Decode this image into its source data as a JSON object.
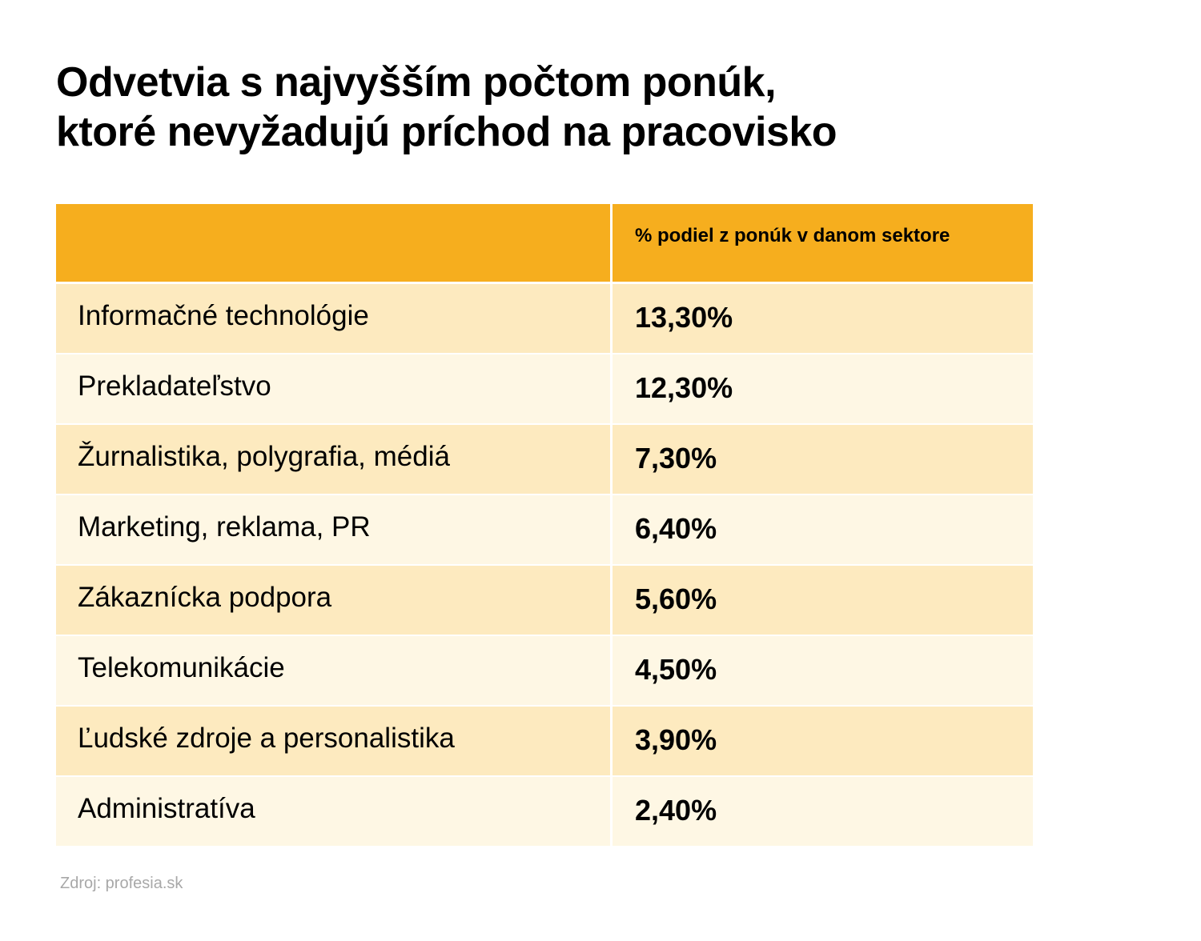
{
  "title_lines": [
    "Odvetvia s najvyšším počtom ponúk,",
    "ktoré nevyžadujú príchod na pracovisko"
  ],
  "colors": {
    "header": "#f6ae1e",
    "row_odd": "#fdeabf",
    "row_even": "#fef7e4",
    "source": "#a8a8a8"
  },
  "chart_data": {
    "type": "table",
    "title": "Odvetvia s najvyšším počtom ponúk, ktoré nevyžadujú príchod na pracovisko",
    "columns": [
      "",
      "% podiel z ponúk v danom sektore"
    ],
    "rows": [
      {
        "label": "Informačné technológie",
        "value": "13,30%",
        "numeric": 13.3
      },
      {
        "label": "Prekladateľstvo",
        "value": "12,30%",
        "numeric": 12.3
      },
      {
        "label": "Žurnalistika, polygrafia, médiá",
        "value": "7,30%",
        "numeric": 7.3
      },
      {
        "label": "Marketing, reklama, PR",
        "value": "6,40%",
        "numeric": 6.4
      },
      {
        "label": "Zákaznícka podpora",
        "value": "5,60%",
        "numeric": 5.6
      },
      {
        "label": "Telekomunikácie",
        "value": "4,50%",
        "numeric": 4.5
      },
      {
        "label": "Ľudské zdroje a personalistika",
        "value": "3,90%",
        "numeric": 3.9
      },
      {
        "label": "Administratíva",
        "value": "2,40%",
        "numeric": 2.4
      }
    ],
    "source": "Zdroj: profesia.sk"
  }
}
